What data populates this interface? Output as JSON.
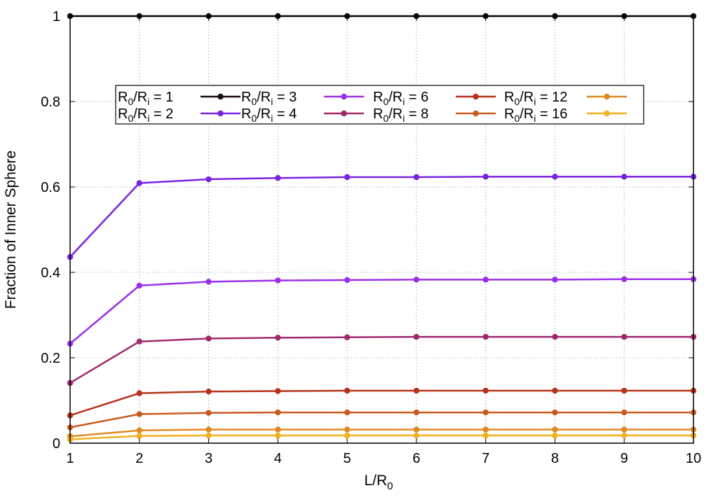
{
  "chart_data": {
    "type": "line",
    "title": "",
    "xlabel": {
      "base": "L/R",
      "sub": "0"
    },
    "ylabel": "Fraction of Inner Sphere",
    "xlim": [
      1,
      10
    ],
    "ylim": [
      0,
      1
    ],
    "grid": true,
    "legend_position": "top-left inside plot",
    "x": [
      1,
      2,
      3,
      4,
      5,
      6,
      7,
      8,
      9,
      10
    ],
    "xticks": [
      "1",
      "2",
      "3",
      "4",
      "5",
      "6",
      "7",
      "8",
      "9",
      "10"
    ],
    "yticks": [
      {
        "v": 0,
        "label": "0"
      },
      {
        "v": 0.2,
        "label": "0.2"
      },
      {
        "v": 0.4,
        "label": "0.4"
      },
      {
        "v": 0.6,
        "label": "0.6"
      },
      {
        "v": 0.8,
        "label": "0.8"
      },
      {
        "v": 1,
        "label": "1"
      }
    ],
    "series": [
      {
        "name": {
          "a": "R",
          "asub": "0",
          "b": "/R",
          "bsub": "i",
          "rest": " = 1"
        },
        "color": "#1a0a0a",
        "values": [
          1,
          1,
          1,
          1,
          1,
          1,
          1,
          1,
          1,
          1
        ]
      },
      {
        "name": {
          "a": "R",
          "asub": "0",
          "b": "/R",
          "bsub": "i",
          "rest": " = 2"
        },
        "color": "#7a22e0",
        "values": [
          0.436,
          0.609,
          0.618,
          0.621,
          0.623,
          0.623,
          0.624,
          0.624,
          0.624,
          0.624
        ]
      },
      {
        "name": {
          "a": "R",
          "asub": "0",
          "b": "/R",
          "bsub": "i",
          "rest": " = 3"
        },
        "color": "#9a2fe8",
        "values": [
          0.233,
          0.369,
          0.378,
          0.381,
          0.382,
          0.383,
          0.383,
          0.383,
          0.384,
          0.384
        ]
      },
      {
        "name": {
          "a": "R",
          "asub": "0",
          "b": "/R",
          "bsub": "i",
          "rest": " = 4"
        },
        "color": "#a0286c",
        "values": [
          0.141,
          0.238,
          0.245,
          0.247,
          0.248,
          0.249,
          0.249,
          0.249,
          0.249,
          0.249
        ]
      },
      {
        "name": {
          "a": "R",
          "asub": "0",
          "b": "/R",
          "bsub": "i",
          "rest": " = 6"
        },
        "color": "#b8321a",
        "values": [
          0.065,
          0.117,
          0.121,
          0.122,
          0.123,
          0.123,
          0.123,
          0.123,
          0.123,
          0.123
        ]
      },
      {
        "name": {
          "a": "R",
          "asub": "0",
          "b": "/R",
          "bsub": "i",
          "rest": " = 8"
        },
        "color": "#c95a1e",
        "values": [
          0.037,
          0.068,
          0.071,
          0.072,
          0.072,
          0.072,
          0.072,
          0.072,
          0.072,
          0.072
        ]
      },
      {
        "name": {
          "a": "R",
          "asub": "0",
          "b": "/R",
          "bsub": "i",
          "rest": " = 12"
        },
        "color": "#de8a22",
        "values": [
          0.016,
          0.03,
          0.032,
          0.032,
          0.032,
          0.032,
          0.032,
          0.032,
          0.032,
          0.032
        ]
      },
      {
        "name": {
          "a": "R",
          "asub": "0",
          "b": "/R",
          "bsub": "i",
          "rest": " = 16"
        },
        "color": "#f0b020",
        "values": [
          0.009,
          0.017,
          0.018,
          0.018,
          0.018,
          0.018,
          0.018,
          0.018,
          0.018,
          0.018
        ]
      }
    ]
  }
}
